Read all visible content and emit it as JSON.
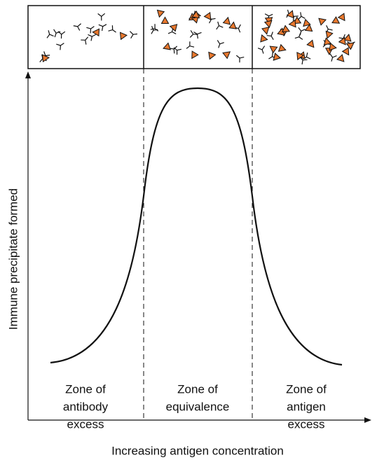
{
  "zones": [
    {
      "label": [
        "Zone of",
        "antibody",
        "excess"
      ]
    },
    {
      "label": [
        "Zone of",
        "equivalence"
      ]
    },
    {
      "label": [
        "Zone of",
        "antigen",
        "excess"
      ]
    }
  ],
  "axes": {
    "y_label": "Immune precipitate formed",
    "x_label": "Increasing antigen concentration"
  }
}
